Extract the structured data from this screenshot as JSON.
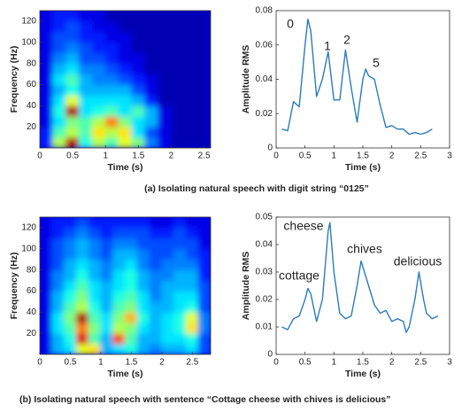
{
  "chart_data": [
    {
      "type": "heatmap",
      "colormap": "jet",
      "xlabel": "Time (s)",
      "ylabel": "Frequency (Hz)",
      "xlim": [
        0,
        2.6
      ],
      "ylim": [
        0,
        130
      ],
      "xticks": [
        0,
        0.5,
        1,
        1.5,
        2,
        2.5
      ],
      "yticks": [
        20,
        40,
        60,
        80,
        100,
        120
      ],
      "x": [
        0.1,
        0.3,
        0.5,
        0.7,
        0.9,
        1.1,
        1.3,
        1.5,
        1.7,
        1.9,
        2.1,
        2.3,
        2.5
      ],
      "y": [
        5,
        15,
        25,
        35,
        45,
        55,
        65,
        75,
        85,
        95,
        105,
        115,
        125
      ],
      "z": [
        [
          0.15,
          0.55,
          0.95,
          0.4,
          0.55,
          0.45,
          0.6,
          0.5,
          0.25,
          0.1,
          0.05,
          0.05,
          0.05
        ],
        [
          0.15,
          0.45,
          0.55,
          0.45,
          0.65,
          0.55,
          0.65,
          0.35,
          0.2,
          0.1,
          0.05,
          0.05,
          0.05
        ],
        [
          0.1,
          0.35,
          0.5,
          0.45,
          0.55,
          0.75,
          0.5,
          0.35,
          0.3,
          0.1,
          0.05,
          0.05,
          0.05
        ],
        [
          0.1,
          0.4,
          0.95,
          0.35,
          0.4,
          0.45,
          0.35,
          0.45,
          0.3,
          0.1,
          0.05,
          0.05,
          0.05
        ],
        [
          0.1,
          0.35,
          0.6,
          0.35,
          0.35,
          0.35,
          0.35,
          0.3,
          0.15,
          0.05,
          0.05,
          0.05,
          0.05
        ],
        [
          0.1,
          0.3,
          0.4,
          0.3,
          0.3,
          0.3,
          0.3,
          0.2,
          0.1,
          0.05,
          0.05,
          0.05,
          0.05
        ],
        [
          0.1,
          0.35,
          0.45,
          0.3,
          0.25,
          0.25,
          0.2,
          0.15,
          0.1,
          0.05,
          0.05,
          0.05,
          0.05
        ],
        [
          0.1,
          0.3,
          0.35,
          0.25,
          0.25,
          0.2,
          0.15,
          0.1,
          0.05,
          0.05,
          0.05,
          0.05,
          0.05
        ],
        [
          0.1,
          0.25,
          0.3,
          0.2,
          0.2,
          0.15,
          0.1,
          0.1,
          0.05,
          0.05,
          0.05,
          0.05,
          0.05
        ],
        [
          0.1,
          0.2,
          0.25,
          0.2,
          0.15,
          0.15,
          0.1,
          0.05,
          0.05,
          0.05,
          0.05,
          0.05,
          0.05
        ],
        [
          0.1,
          0.2,
          0.2,
          0.15,
          0.15,
          0.1,
          0.1,
          0.05,
          0.05,
          0.05,
          0.05,
          0.05,
          0.05
        ],
        [
          0.1,
          0.15,
          0.2,
          0.15,
          0.1,
          0.1,
          0.05,
          0.05,
          0.05,
          0.05,
          0.05,
          0.05,
          0.05
        ],
        [
          0.1,
          0.15,
          0.15,
          0.1,
          0.1,
          0.05,
          0.05,
          0.05,
          0.05,
          0.05,
          0.05,
          0.05,
          0.05
        ]
      ]
    },
    {
      "type": "line",
      "color": "#2a7bbd",
      "xlabel": "Time (s)",
      "ylabel": "Amplitude RMS",
      "xlim": [
        0,
        3
      ],
      "ylim": [
        0,
        0.08
      ],
      "xticks": [
        0,
        0.5,
        1,
        1.5,
        2,
        2.5,
        3
      ],
      "yticks": [
        0,
        0.02,
        0.04,
        0.06,
        0.08
      ],
      "annotations": [
        "0",
        "1",
        "2",
        "5"
      ],
      "x": [
        0.1,
        0.2,
        0.3,
        0.4,
        0.5,
        0.55,
        0.6,
        0.7,
        0.8,
        0.9,
        1.0,
        1.1,
        1.2,
        1.3,
        1.4,
        1.5,
        1.55,
        1.6,
        1.7,
        1.8,
        1.9,
        2.0,
        2.1,
        2.2,
        2.3,
        2.4,
        2.5,
        2.6,
        2.7
      ],
      "values": [
        0.011,
        0.01,
        0.027,
        0.024,
        0.06,
        0.075,
        0.068,
        0.03,
        0.04,
        0.056,
        0.028,
        0.028,
        0.057,
        0.035,
        0.015,
        0.04,
        0.046,
        0.042,
        0.04,
        0.025,
        0.012,
        0.013,
        0.011,
        0.011,
        0.008,
        0.009,
        0.008,
        0.009,
        0.011
      ]
    },
    {
      "type": "heatmap",
      "colormap": "jet",
      "xlabel": "Time (s)",
      "ylabel": "Frequency (Hz)",
      "xlim": [
        0,
        2.8
      ],
      "ylim": [
        0,
        130
      ],
      "xticks": [
        0,
        0.5,
        1,
        1.5,
        2,
        2.5
      ],
      "yticks": [
        20,
        40,
        60,
        80,
        100,
        120
      ],
      "x": [
        0.1,
        0.3,
        0.5,
        0.7,
        0.9,
        1.1,
        1.3,
        1.5,
        1.7,
        1.9,
        2.1,
        2.3,
        2.5,
        2.7
      ],
      "y": [
        5,
        15,
        25,
        35,
        45,
        55,
        65,
        75,
        85,
        95,
        105,
        115,
        125
      ],
      "z": [
        [
          0.1,
          0.3,
          0.35,
          0.6,
          0.65,
          0.3,
          0.35,
          0.4,
          0.3,
          0.25,
          0.3,
          0.3,
          0.35,
          0.2
        ],
        [
          0.1,
          0.3,
          0.4,
          0.9,
          0.45,
          0.3,
          0.8,
          0.45,
          0.3,
          0.3,
          0.35,
          0.35,
          0.4,
          0.2
        ],
        [
          0.1,
          0.35,
          0.45,
          0.75,
          0.5,
          0.35,
          0.55,
          0.5,
          0.35,
          0.3,
          0.35,
          0.4,
          0.65,
          0.25
        ],
        [
          0.1,
          0.35,
          0.5,
          0.95,
          0.45,
          0.35,
          0.5,
          0.7,
          0.4,
          0.3,
          0.35,
          0.4,
          0.6,
          0.25
        ],
        [
          0.1,
          0.3,
          0.45,
          0.55,
          0.4,
          0.3,
          0.45,
          0.5,
          0.35,
          0.3,
          0.3,
          0.35,
          0.4,
          0.2
        ],
        [
          0.1,
          0.3,
          0.4,
          0.5,
          0.35,
          0.3,
          0.4,
          0.45,
          0.35,
          0.25,
          0.3,
          0.35,
          0.35,
          0.2
        ],
        [
          0.1,
          0.25,
          0.35,
          0.45,
          0.35,
          0.3,
          0.35,
          0.4,
          0.3,
          0.25,
          0.3,
          0.3,
          0.3,
          0.2
        ],
        [
          0.1,
          0.25,
          0.3,
          0.4,
          0.3,
          0.25,
          0.35,
          0.4,
          0.3,
          0.25,
          0.25,
          0.3,
          0.3,
          0.15
        ],
        [
          0.1,
          0.2,
          0.3,
          0.35,
          0.3,
          0.25,
          0.3,
          0.35,
          0.25,
          0.2,
          0.25,
          0.25,
          0.25,
          0.15
        ],
        [
          0.1,
          0.2,
          0.25,
          0.3,
          0.25,
          0.2,
          0.3,
          0.3,
          0.25,
          0.2,
          0.2,
          0.25,
          0.2,
          0.15
        ],
        [
          0.1,
          0.2,
          0.25,
          0.3,
          0.25,
          0.2,
          0.25,
          0.25,
          0.2,
          0.2,
          0.2,
          0.2,
          0.2,
          0.1
        ],
        [
          0.1,
          0.15,
          0.2,
          0.25,
          0.2,
          0.15,
          0.2,
          0.2,
          0.2,
          0.15,
          0.15,
          0.2,
          0.15,
          0.1
        ],
        [
          0.1,
          0.15,
          0.15,
          0.2,
          0.15,
          0.15,
          0.15,
          0.15,
          0.15,
          0.1,
          0.1,
          0.15,
          0.1,
          0.1
        ]
      ]
    },
    {
      "type": "line",
      "color": "#2a7bbd",
      "xlabel": "Time (s)",
      "ylabel": "Amplitude RMS",
      "xlim": [
        0,
        3
      ],
      "ylim": [
        0,
        0.05
      ],
      "xticks": [
        0,
        0.5,
        1,
        1.5,
        2,
        2.5,
        3
      ],
      "yticks": [
        0,
        0.01,
        0.02,
        0.03,
        0.04,
        0.05
      ],
      "annotations": [
        "cottage",
        "cheese",
        "chives",
        "delicious"
      ],
      "x": [
        0.1,
        0.2,
        0.3,
        0.4,
        0.5,
        0.55,
        0.6,
        0.7,
        0.8,
        0.9,
        0.93,
        1.0,
        1.1,
        1.2,
        1.3,
        1.4,
        1.47,
        1.6,
        1.7,
        1.8,
        1.9,
        2.0,
        2.1,
        2.2,
        2.25,
        2.3,
        2.4,
        2.47,
        2.55,
        2.6,
        2.7,
        2.8
      ],
      "values": [
        0.01,
        0.009,
        0.013,
        0.014,
        0.02,
        0.024,
        0.022,
        0.012,
        0.02,
        0.045,
        0.048,
        0.03,
        0.015,
        0.013,
        0.014,
        0.025,
        0.034,
        0.025,
        0.018,
        0.015,
        0.016,
        0.012,
        0.013,
        0.012,
        0.008,
        0.01,
        0.02,
        0.03,
        0.02,
        0.015,
        0.013,
        0.014
      ]
    }
  ],
  "captions": [
    "(a) Isolating natural speech with digit string “0125”",
    "(b) Isolating natural speech with sentence “Cottage cheese with chives is delicious”"
  ]
}
